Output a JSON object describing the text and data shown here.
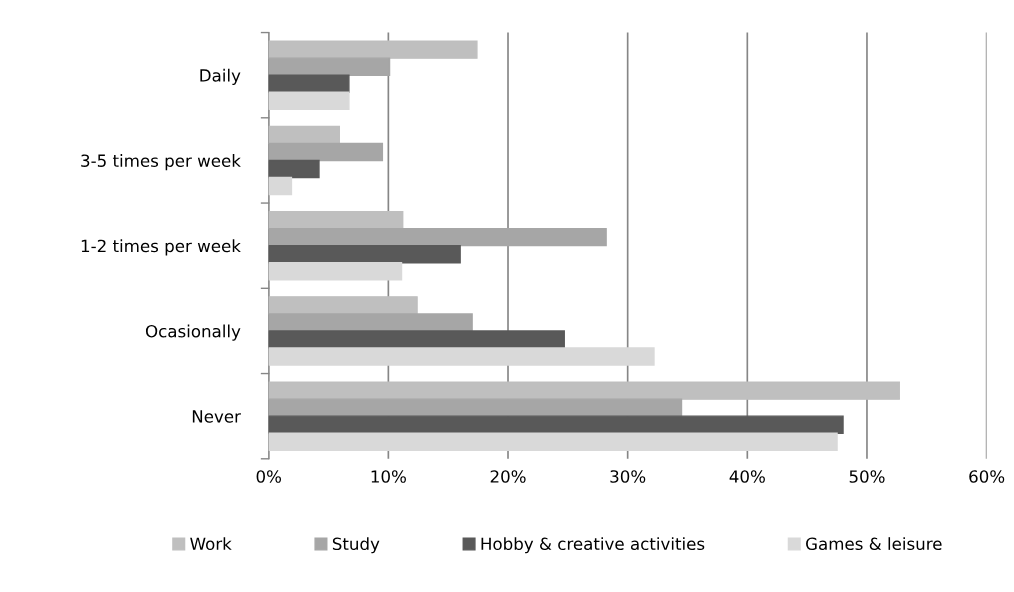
{
  "chart_data": {
    "type": "bar",
    "orientation": "horizontal",
    "categories": [
      "Daily",
      "3-5 times per week",
      "1-2 times per week",
      "Ocasionally",
      "Never"
    ],
    "series": [
      {
        "name": "Work",
        "color": "#bfbfbf",
        "values": [
          17.4,
          5.9,
          11.2,
          12.4,
          52.7
        ]
      },
      {
        "name": "Study",
        "color": "#a6a6a6",
        "values": [
          10.1,
          9.5,
          28.2,
          17.0,
          34.5
        ]
      },
      {
        "name": "Hobby & creative activities",
        "color": "#595959",
        "values": [
          6.7,
          4.2,
          16.0,
          24.7,
          48.0
        ]
      },
      {
        "name": "Games & leisure",
        "color": "#d9d9d9",
        "values": [
          6.7,
          1.9,
          11.1,
          32.2,
          47.5
        ]
      }
    ],
    "xlim": [
      0,
      60
    ],
    "xticks": [
      {
        "value": 0,
        "label": "0%"
      },
      {
        "value": 10,
        "label": "10%"
      },
      {
        "value": 20,
        "label": "20%"
      },
      {
        "value": 30,
        "label": "30%"
      },
      {
        "value": 40,
        "label": "40%"
      },
      {
        "value": 50,
        "label": "50%"
      },
      {
        "value": 60,
        "label": "60%"
      }
    ],
    "grid": "x",
    "legend": "bottom"
  }
}
